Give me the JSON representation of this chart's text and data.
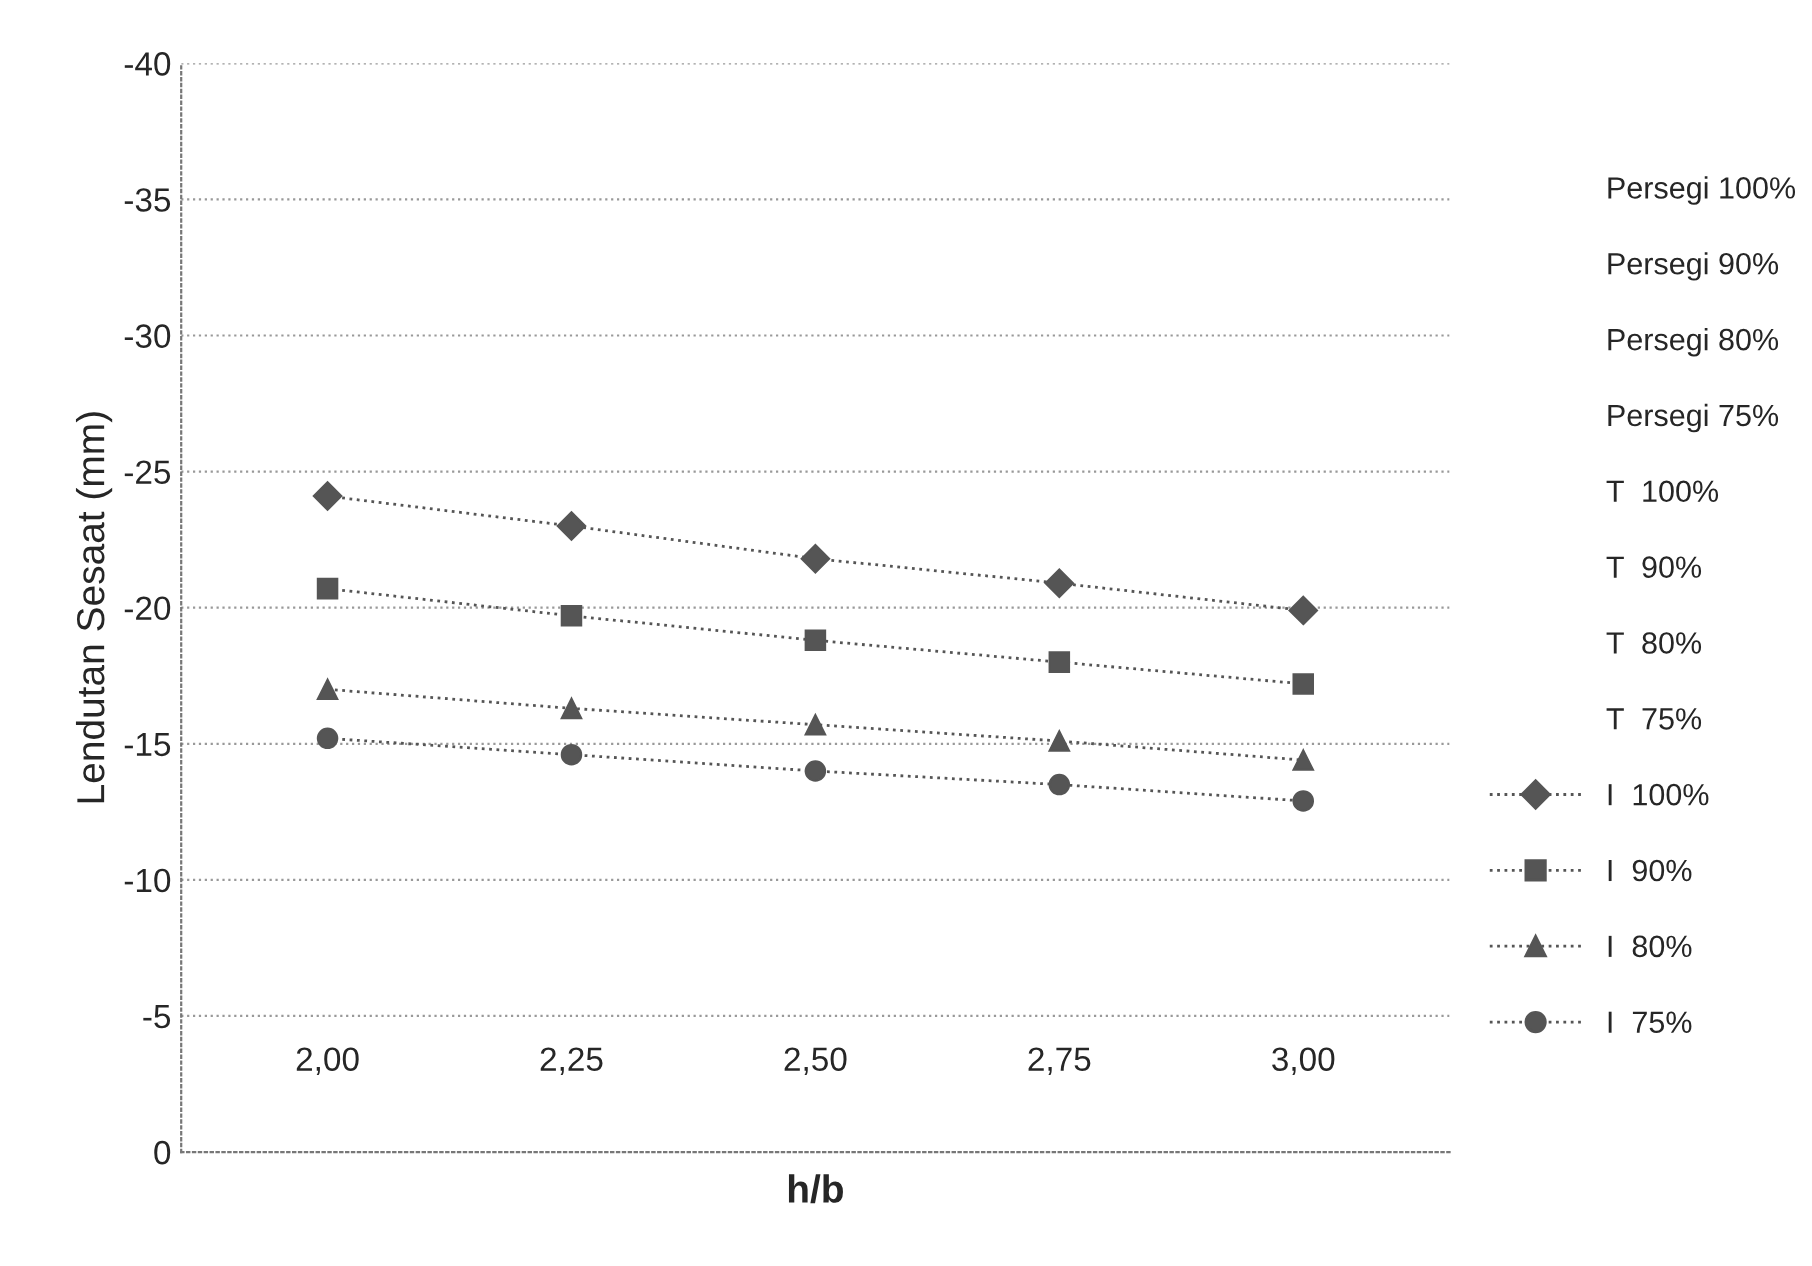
{
  "chart_data": {
    "type": "line",
    "xlabel": "h/b",
    "ylabel": "Lendutan Sesaat (mm)",
    "categories": [
      "2,00",
      "2,25",
      "2,50",
      "2,75",
      "3,00"
    ],
    "ylim": [
      0,
      -40
    ],
    "yticks": [
      0,
      -5,
      -10,
      -15,
      -20,
      -25,
      -30,
      -35,
      -40
    ],
    "grid": "y",
    "legend": "right",
    "line_style": "dotted",
    "series": [
      {
        "name": "Persegi 100%",
        "values": [
          null,
          null,
          null,
          null,
          null
        ]
      },
      {
        "name": "Persegi 90%",
        "values": [
          null,
          null,
          null,
          null,
          null
        ]
      },
      {
        "name": "Persegi 80%",
        "values": [
          null,
          null,
          null,
          null,
          null
        ]
      },
      {
        "name": "Persegi 75%",
        "values": [
          null,
          null,
          null,
          null,
          null
        ]
      },
      {
        "name": "T  100%",
        "values": [
          null,
          null,
          null,
          null,
          null
        ]
      },
      {
        "name": "T  90%",
        "values": [
          null,
          null,
          null,
          null,
          null
        ]
      },
      {
        "name": "T  80%",
        "values": [
          null,
          null,
          null,
          null,
          null
        ]
      },
      {
        "name": "T  75%",
        "values": [
          null,
          null,
          null,
          null,
          null
        ]
      },
      {
        "name": "I  100%",
        "color": "#555555",
        "marker": "diamond",
        "values": [
          -24.1,
          -23.0,
          -21.8,
          -20.9,
          -19.9
        ]
      },
      {
        "name": "I  90%",
        "color": "#555555",
        "marker": "square",
        "values": [
          -20.7,
          -19.7,
          -18.8,
          -18.0,
          -17.2
        ]
      },
      {
        "name": "I  80%",
        "color": "#555555",
        "marker": "triangle",
        "values": [
          -17.0,
          -16.3,
          -15.7,
          -15.1,
          -14.4
        ]
      },
      {
        "name": "I  75%",
        "color": "#555555",
        "marker": "circle",
        "values": [
          -15.2,
          -14.6,
          -14.0,
          -13.5,
          -12.9
        ]
      }
    ]
  }
}
